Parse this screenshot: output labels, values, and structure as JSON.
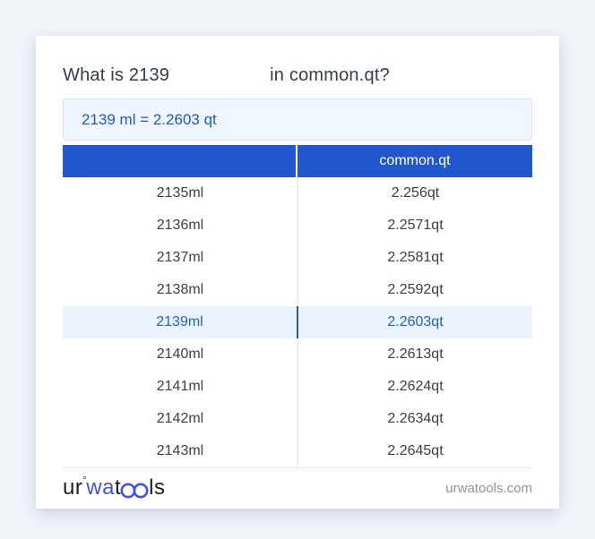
{
  "title": {
    "prefix": "What is 2139",
    "suffix": "in common.qt?"
  },
  "result": {
    "text": "2139 ml = 2.2603 qt"
  },
  "table": {
    "header": {
      "left": "",
      "right": "common.qt"
    },
    "rows": [
      {
        "ml": "2135ml",
        "qt": "2.256qt",
        "highlight": false
      },
      {
        "ml": "2136ml",
        "qt": "2.2571qt",
        "highlight": false
      },
      {
        "ml": "2137ml",
        "qt": "2.2581qt",
        "highlight": false
      },
      {
        "ml": "2138ml",
        "qt": "2.2592qt",
        "highlight": false
      },
      {
        "ml": "2139ml",
        "qt": "2.2603qt",
        "highlight": true
      },
      {
        "ml": "2140ml",
        "qt": "2.2613qt",
        "highlight": false
      },
      {
        "ml": "2141ml",
        "qt": "2.2624qt",
        "highlight": false
      },
      {
        "ml": "2142ml",
        "qt": "2.2634qt",
        "highlight": false
      },
      {
        "ml": "2143ml",
        "qt": "2.2645qt",
        "highlight": false
      }
    ]
  },
  "footer": {
    "logo": {
      "part_ur": "ur",
      "degree_mark": "°",
      "part_wa": "wa",
      "part_t": "t",
      "glasses_icon": "linked-oo-glasses",
      "part_ls": "ls"
    },
    "domain": "urwatools.com"
  },
  "colors": {
    "page_background": "#F1F4F9",
    "card_background": "#FFFFFF",
    "header_blue": "#2256CE",
    "highlight_row_background": "#EAF3FE",
    "highlight_text_blue": "#2161D2",
    "result_box_background": "#EFF6FF",
    "result_text_blue": "#1D5BC7",
    "logo_blue": "#4450E6",
    "body_text": "#3A4049",
    "muted_text": "#8D939E"
  }
}
